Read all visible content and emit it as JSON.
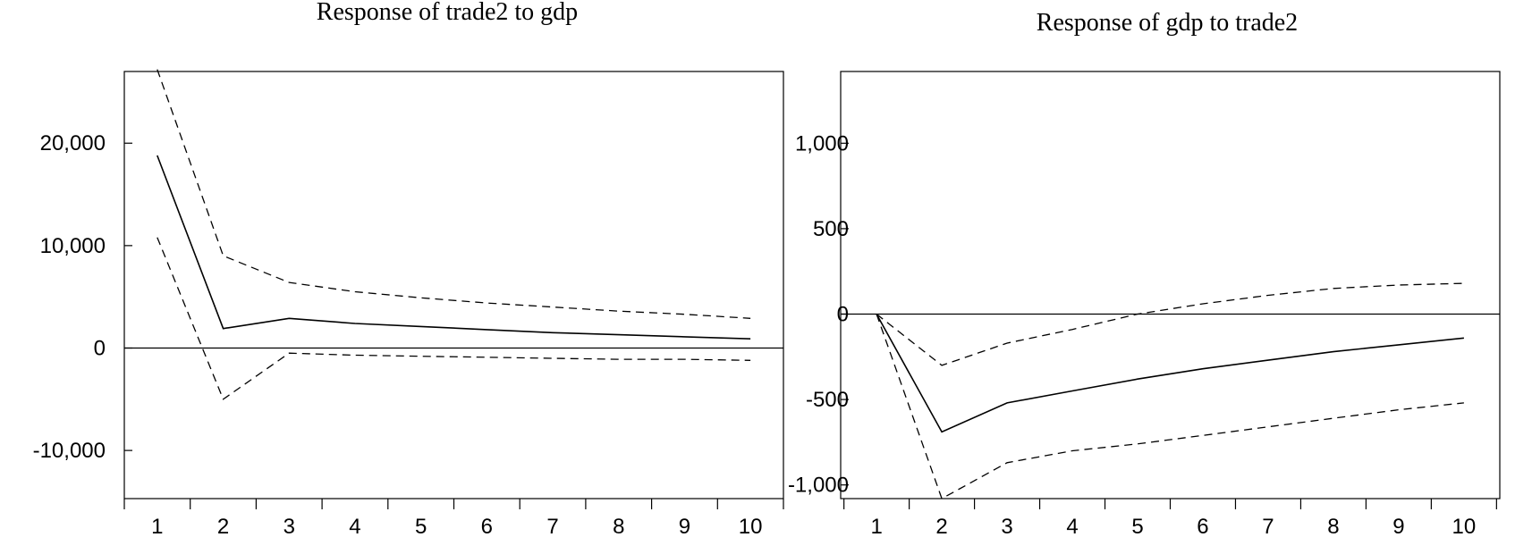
{
  "chart_data": [
    {
      "type": "line",
      "title": "Response of trade2 to gdp",
      "x": [
        1,
        2,
        3,
        4,
        5,
        6,
        7,
        8,
        9,
        10
      ],
      "x_tick_labels": [
        "1",
        "2",
        "3",
        "4",
        "5",
        "6",
        "7",
        "8",
        "9",
        "10"
      ],
      "y_ticks": [
        -10000,
        0,
        10000,
        20000
      ],
      "y_tick_labels": [
        "-10,000",
        "0",
        "10,000",
        "20,000"
      ],
      "ylim": [
        -14700,
        27000
      ],
      "zero_line": true,
      "series": [
        {
          "style": "solid",
          "values": [
            18800,
            1900,
            2900,
            2400,
            2100,
            1800,
            1500,
            1300,
            1100,
            900
          ]
        },
        {
          "style": "dashed",
          "values": [
            27200,
            9000,
            6400,
            5500,
            4900,
            4400,
            4000,
            3600,
            3300,
            2900
          ]
        },
        {
          "style": "dashed",
          "values": [
            10800,
            -5000,
            -500,
            -700,
            -800,
            -900,
            -1000,
            -1100,
            -1100,
            -1200
          ]
        }
      ]
    },
    {
      "type": "line",
      "title": "Response of gdp to trade2",
      "x": [
        1,
        2,
        3,
        4,
        5,
        6,
        7,
        8,
        9,
        10
      ],
      "x_tick_labels": [
        "1",
        "2",
        "3",
        "4",
        "5",
        "6",
        "7",
        "8",
        "9",
        "10"
      ],
      "y_ticks": [
        -1000,
        -500,
        0,
        500,
        1000
      ],
      "y_tick_labels": [
        "-1,000",
        "-500",
        "0",
        "500",
        "1,000"
      ],
      "ylim": [
        -1080,
        1420
      ],
      "zero_line": true,
      "series": [
        {
          "style": "solid",
          "values": [
            0,
            -690,
            -520,
            -450,
            -380,
            -320,
            -270,
            -220,
            -180,
            -140
          ]
        },
        {
          "style": "dashed",
          "values": [
            0,
            -300,
            -170,
            -90,
            0,
            60,
            110,
            150,
            170,
            180
          ]
        },
        {
          "style": "dashed",
          "values": [
            0,
            -1080,
            -870,
            -800,
            -760,
            -710,
            -660,
            -610,
            -560,
            -520
          ]
        }
      ]
    }
  ]
}
